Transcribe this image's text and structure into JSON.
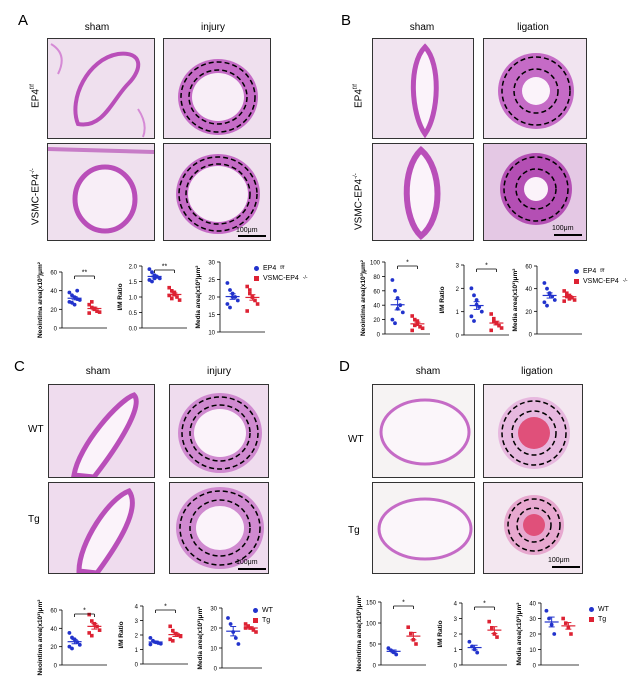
{
  "panels": {
    "A": {
      "letter": "A",
      "col1": "sham",
      "col2": "injury",
      "row1": "EP4",
      "row1_sup": "f/f",
      "row2": "VSMC-EP4",
      "row2_sup": "-/-",
      "scalebar": "100μm",
      "legend": [
        "EP4",
        "VSMC-EP4"
      ],
      "legend_sup": [
        "f/f",
        "-/-"
      ]
    },
    "B": {
      "letter": "B",
      "col1": "sham",
      "col2": "ligation",
      "row1": "EP4",
      "row1_sup": "f/f",
      "row2": "VSMC-EP4",
      "row2_sup": "-/-",
      "scalebar": "100μm",
      "legend": [
        "EP4",
        "VSMC-EP4"
      ],
      "legend_sup": [
        "f/f",
        "-/-"
      ]
    },
    "C": {
      "letter": "C",
      "col1": "sham",
      "col2": "injury",
      "row1": "WT",
      "row2": "Tg",
      "scalebar": "100μm",
      "legend": [
        "WT",
        "Tg"
      ]
    },
    "D": {
      "letter": "D",
      "col1": "sham",
      "col2": "ligation",
      "row1": "WT",
      "row2": "Tg",
      "scalebar": "100μm",
      "legend": [
        "WT",
        "Tg"
      ]
    }
  },
  "colors": {
    "blue": "#2233cc",
    "red": "#dd2233",
    "stain": "#c45bc4",
    "bg_tissue": "#f3dcef"
  },
  "chart_data": [
    {
      "panel": "A",
      "type": "scatter",
      "ylabel": "Neointima area(x10³)μm²",
      "ylim": [
        0,
        60
      ],
      "yticks": [
        0,
        20,
        40,
        60
      ],
      "sig": "**",
      "series": [
        {
          "values": [
            38,
            35,
            33,
            31,
            30,
            28,
            27,
            25,
            40
          ]
        },
        {
          "values": [
            25,
            22,
            20,
            18,
            17,
            16,
            28,
            21
          ]
        }
      ]
    },
    {
      "panel": "A",
      "type": "scatter",
      "ylabel": "I/M Ratio",
      "ylim": [
        0.0,
        2.0
      ],
      "yticks": [
        0.0,
        0.5,
        1.0,
        1.5,
        2.0
      ],
      "sig": "**",
      "series": [
        {
          "values": [
            1.9,
            1.8,
            1.7,
            1.65,
            1.6,
            1.55,
            1.5,
            1.6
          ]
        },
        {
          "values": [
            1.3,
            1.2,
            1.1,
            1.0,
            0.9,
            1.05,
            0.95,
            1.15
          ]
        }
      ]
    },
    {
      "panel": "A",
      "type": "scatter",
      "ylabel": "Media area(x10³)μm²",
      "ylim": [
        10,
        30
      ],
      "yticks": [
        10,
        15,
        20,
        25,
        30
      ],
      "series": [
        {
          "values": [
            24,
            22,
            21,
            20,
            19,
            18,
            17,
            20
          ]
        },
        {
          "values": [
            23,
            21,
            20,
            19,
            18,
            16,
            22,
            20
          ]
        }
      ]
    },
    {
      "panel": "B",
      "type": "scatter",
      "ylabel": "Neointima area(x10³)μm²",
      "ylim": [
        0,
        100
      ],
      "yticks": [
        0,
        20,
        40,
        60,
        80,
        100
      ],
      "sig": "*",
      "series": [
        {
          "values": [
            75,
            60,
            50,
            40,
            30,
            20,
            15,
            35
          ]
        },
        {
          "values": [
            25,
            20,
            15,
            10,
            8,
            5,
            12,
            18
          ]
        }
      ]
    },
    {
      "panel": "B",
      "type": "scatter",
      "ylabel": "I/M Ratio",
      "ylim": [
        0,
        3
      ],
      "yticks": [
        0,
        1,
        2,
        3
      ],
      "sig": "*",
      "series": [
        {
          "values": [
            2.0,
            1.7,
            1.5,
            1.2,
            1.0,
            0.8,
            0.6,
            1.3
          ]
        },
        {
          "values": [
            0.9,
            0.7,
            0.5,
            0.4,
            0.3,
            0.2,
            0.6,
            0.5
          ]
        }
      ]
    },
    {
      "panel": "B",
      "type": "scatter",
      "ylabel": "Media area(x10³)μm²",
      "ylim": [
        0,
        60
      ],
      "yticks": [
        0,
        20,
        40,
        60
      ],
      "series": [
        {
          "values": [
            45,
            40,
            36,
            33,
            30,
            28,
            25,
            35
          ]
        },
        {
          "values": [
            38,
            36,
            34,
            32,
            30,
            29,
            33,
            31
          ]
        }
      ]
    },
    {
      "panel": "C",
      "type": "scatter",
      "ylabel": "Neointima area(x10³)μm²",
      "ylim": [
        0,
        60
      ],
      "yticks": [
        0,
        20,
        40,
        60
      ],
      "sig": "*",
      "series": [
        {
          "values": [
            35,
            30,
            28,
            25,
            22,
            20,
            18
          ]
        },
        {
          "values": [
            55,
            48,
            45,
            42,
            38,
            35,
            32
          ]
        }
      ]
    },
    {
      "panel": "C",
      "type": "scatter",
      "ylabel": "I/M Ratio",
      "ylim": [
        0,
        4
      ],
      "yticks": [
        0,
        1,
        2,
        3,
        4
      ],
      "sig": "*",
      "series": [
        {
          "values": [
            1.8,
            1.6,
            1.5,
            1.45,
            1.4,
            1.35
          ]
        },
        {
          "values": [
            2.6,
            2.3,
            2.1,
            2.0,
            1.9,
            1.7,
            1.6
          ]
        }
      ]
    },
    {
      "panel": "C",
      "type": "scatter",
      "ylabel": "Media area(x10³)μm²",
      "ylim": [
        0,
        30
      ],
      "yticks": [
        0,
        10,
        20,
        30
      ],
      "series": [
        {
          "values": [
            25,
            22,
            18,
            15,
            12
          ]
        },
        {
          "values": [
            22,
            21,
            20,
            19,
            18,
            20
          ]
        }
      ]
    },
    {
      "panel": "D",
      "type": "scatter",
      "ylabel": "Neointima area(x10³)μm²",
      "ylim": [
        0,
        150
      ],
      "yticks": [
        0,
        50,
        100,
        150
      ],
      "sig": "*",
      "series": [
        {
          "values": [
            40,
            35,
            30,
            25
          ]
        },
        {
          "values": [
            90,
            75,
            60,
            50
          ]
        }
      ]
    },
    {
      "panel": "D",
      "type": "scatter",
      "ylabel": "I/M Ratio",
      "ylim": [
        0,
        4
      ],
      "yticks": [
        0,
        1,
        2,
        3,
        4
      ],
      "sig": "*",
      "series": [
        {
          "values": [
            1.5,
            1.2,
            1.0,
            0.8
          ]
        },
        {
          "values": [
            2.8,
            2.4,
            2.0,
            1.8
          ]
        }
      ]
    },
    {
      "panel": "D",
      "type": "scatter",
      "ylabel": "Media area(x10³)μm²",
      "ylim": [
        0,
        40
      ],
      "yticks": [
        0,
        10,
        20,
        30,
        40
      ],
      "series": [
        {
          "values": [
            35,
            30,
            26,
            20
          ]
        },
        {
          "values": [
            30,
            27,
            24,
            20
          ]
        }
      ]
    }
  ]
}
